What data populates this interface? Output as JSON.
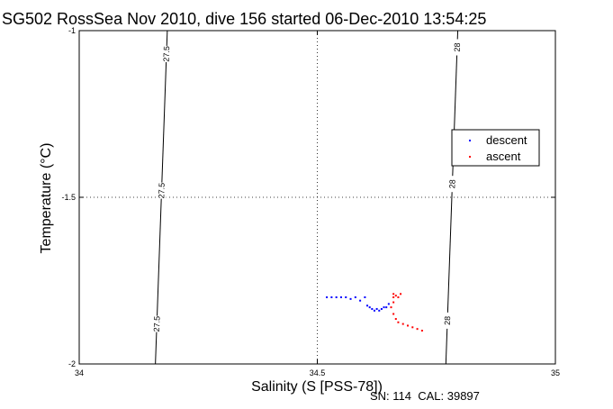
{
  "chart_data": {
    "type": "scatter",
    "title": "SG502 RossSea Nov 2010, dive 156 started 06-Dec-2010 13:54:25",
    "xlabel": "Salinity (S [PSS-78])",
    "ylabel": "Temperature (°C)",
    "xlim": [
      34,
      35
    ],
    "ylim": [
      -2,
      -1
    ],
    "x_ticks": [
      "34",
      "34.5",
      "35"
    ],
    "y_ticks": [
      "-1",
      "-1.5",
      "-2"
    ],
    "grid": true,
    "legend_position": "right",
    "footer": "SN: 114  CAL: 39897",
    "isopycnals": [
      {
        "label": "27.5",
        "points": [
          [
            34.16,
            -2.0
          ],
          [
            34.185,
            -1.0
          ]
        ],
        "labels_at_y": [
          -1.07,
          -1.48,
          -1.88
        ]
      },
      {
        "label": "28",
        "points": [
          [
            34.77,
            -2.0
          ],
          [
            34.795,
            -1.0
          ]
        ],
        "labels_at_y": [
          -1.05,
          -1.46,
          -1.87
        ]
      }
    ],
    "series": [
      {
        "name": "descent",
        "color": "#0000ff",
        "x": [
          34.52,
          34.53,
          34.54,
          34.55,
          34.56,
          34.57,
          34.58,
          34.59,
          34.6,
          34.605,
          34.61,
          34.615,
          34.62,
          34.625,
          34.63,
          34.635,
          34.64,
          34.645,
          34.65
        ],
        "y": [
          -1.8,
          -1.8,
          -1.8,
          -1.8,
          -1.8,
          -1.805,
          -1.8,
          -1.81,
          -1.8,
          -1.825,
          -1.83,
          -1.835,
          -1.84,
          -1.835,
          -1.84,
          -1.835,
          -1.83,
          -1.83,
          -1.82
        ]
      },
      {
        "name": "ascent",
        "color": "#ff0000",
        "x": [
          34.66,
          34.665,
          34.66,
          34.67,
          34.675,
          34.66,
          34.655,
          34.66,
          34.665,
          34.67,
          34.68,
          34.69,
          34.7,
          34.71,
          34.72
        ],
        "y": [
          -1.79,
          -1.795,
          -1.8,
          -1.8,
          -1.79,
          -1.815,
          -1.83,
          -1.85,
          -1.865,
          -1.875,
          -1.88,
          -1.885,
          -1.89,
          -1.895,
          -1.9
        ]
      }
    ]
  }
}
